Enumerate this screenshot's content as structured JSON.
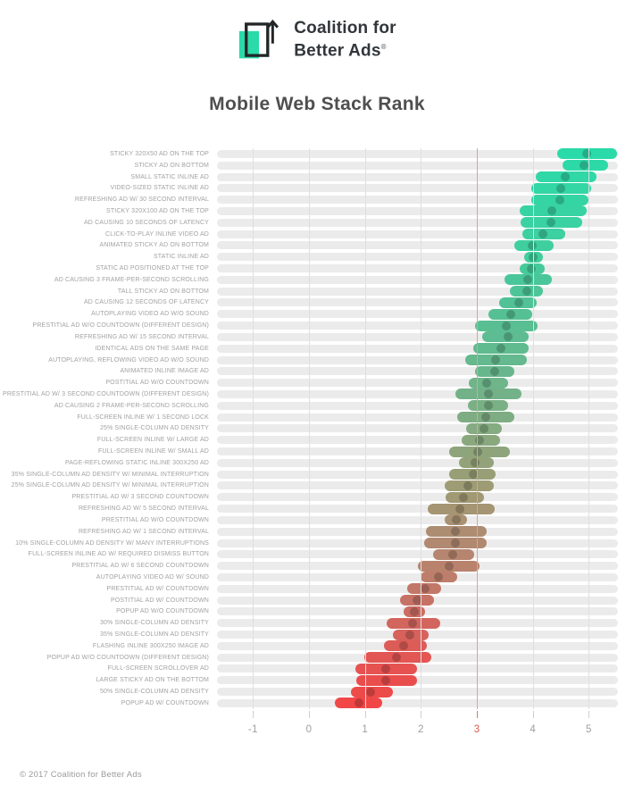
{
  "header": {
    "logo_text_line1": "Coalition for",
    "logo_text_line2": "Better Ads",
    "registered_mark": "®",
    "logo_accent_color": "#2bdaa9",
    "logo_ink_color": "#222629"
  },
  "footer": {
    "copyright": "© 2017 Coalition for Better Ads"
  },
  "chart_data": {
    "type": "bar",
    "subtype": "horizontal-range-with-median",
    "title": "Mobile Web Stack Rank",
    "xlabel": "",
    "ylabel": "",
    "x_ticks": [
      -1,
      0,
      1,
      2,
      3,
      4,
      5
    ],
    "x_range": [
      -1.5,
      5.52
    ],
    "threshold": {
      "value": 3
    },
    "colors": {
      "track": "#ebebeb",
      "gridline": "#dfdfdf",
      "threshold_line": "#e89b94",
      "tick": "#cfcfcf",
      "threshold_tick": "#e0736b",
      "tick_label": "#9e9e9e",
      "threshold_tick_label": "#db5850",
      "label_text": "#a2a2a2"
    },
    "rows": [
      {
        "label": "STICKY 320X50 AD ON THE TOP",
        "lo": 4.45,
        "hi": 5.5,
        "mid": 4.97,
        "color": "#2bdaa9"
      },
      {
        "label": "STICKY AD ON BOTTOM",
        "lo": 4.55,
        "hi": 5.35,
        "mid": 4.93,
        "color": "#2ed9a8"
      },
      {
        "label": "SMALL STATIC INLINE AD",
        "lo": 4.08,
        "hi": 5.15,
        "mid": 4.6,
        "color": "#30d7a7"
      },
      {
        "label": "VIDEO-SIZED STATIC INLINE AD",
        "lo": 4.0,
        "hi": 5.05,
        "mid": 4.52,
        "color": "#33d6a5"
      },
      {
        "label": "REFRESHING AD W/ 30 SECOND INTERVAL",
        "lo": 4.0,
        "hi": 5.0,
        "mid": 4.5,
        "color": "#35d4a4"
      },
      {
        "label": "STICKY 320X100 AD ON THE TOP",
        "lo": 3.8,
        "hi": 4.97,
        "mid": 4.37,
        "color": "#38d3a3"
      },
      {
        "label": "AD CAUSING 10 SECONDS OF LATENCY",
        "lo": 3.81,
        "hi": 4.9,
        "mid": 4.34,
        "color": "#3ad2a2"
      },
      {
        "label": "CLICK-TO-PLAY INLINE VIDEO AD",
        "lo": 3.84,
        "hi": 4.6,
        "mid": 4.21,
        "color": "#3dd0a0"
      },
      {
        "label": "ANIMATED STICKY AD ON BOTTOM",
        "lo": 3.7,
        "hi": 4.4,
        "mid": 4.02,
        "color": "#3fcf9f"
      },
      {
        "label": "STATIC INLINE AD",
        "lo": 3.88,
        "hi": 4.21,
        "mid": 4.04,
        "color": "#43cd9d"
      },
      {
        "label": "STATIC AD POSITIONED AT THE TOP",
        "lo": 3.8,
        "hi": 4.24,
        "mid": 4.01,
        "color": "#46ca9b"
      },
      {
        "label": "AD CAUSING 3 FRAME-PER-SECOND SCROLLING",
        "lo": 3.53,
        "hi": 4.36,
        "mid": 3.94,
        "color": "#4ac79a"
      },
      {
        "label": "TALL STICKY AD ON BOTTOM",
        "lo": 3.63,
        "hi": 4.2,
        "mid": 3.92,
        "color": "#4ec598"
      },
      {
        "label": "AD CAUSING 12 SECONDS OF LATENCY",
        "lo": 3.44,
        "hi": 4.1,
        "mid": 3.78,
        "color": "#51c296"
      },
      {
        "label": "AUTOPLAYING VIDEO AD W/O SOUND",
        "lo": 3.26,
        "hi": 4.02,
        "mid": 3.64,
        "color": "#55c094"
      },
      {
        "label": "PRESTITIAL AD W/O COUNTDOWN (DIFFERENT DESIGN)",
        "lo": 3.02,
        "hi": 4.12,
        "mid": 3.56,
        "color": "#59be92"
      },
      {
        "label": "REFRESHING AD W/ 15 SECOND INTERVAL",
        "lo": 3.14,
        "hi": 3.96,
        "mid": 3.59,
        "color": "#5dbc91"
      },
      {
        "label": "IDENTICAL ADS ON THE SAME PAGE",
        "lo": 2.98,
        "hi": 3.96,
        "mid": 3.47,
        "color": "#60bb8f"
      },
      {
        "label": "AUTOPLAYING, REFLOWING VIDEO AD W/O SOUND",
        "lo": 2.85,
        "hi": 3.92,
        "mid": 3.38,
        "color": "#64b98e"
      },
      {
        "label": "ANIMATED INLINE IMAGE AD",
        "lo": 3.02,
        "hi": 3.7,
        "mid": 3.36,
        "color": "#68b78c"
      },
      {
        "label": "POSTITIAL AD W/O COUNTDOWN",
        "lo": 2.91,
        "hi": 3.59,
        "mid": 3.22,
        "color": "#6eb58a"
      },
      {
        "label": "PRESTITIAL AD W/ 3 SECOND COUNTDOWN (DIFFERENT DESIGN)",
        "lo": 2.67,
        "hi": 3.83,
        "mid": 3.25,
        "color": "#73b288"
      },
      {
        "label": "AD CAUSING 2 FRAME-PER-SECOND SCROLLING",
        "lo": 2.9,
        "hi": 3.6,
        "mid": 3.26,
        "color": "#79b085"
      },
      {
        "label": "FULL-SCREEN INLINE W/ 1 SECOND LOCK",
        "lo": 2.7,
        "hi": 3.7,
        "mid": 3.2,
        "color": "#7ead83"
      },
      {
        "label": "25% SINGLE-COLUMN AD DENSITY",
        "lo": 2.86,
        "hi": 3.49,
        "mid": 3.17,
        "color": "#84ab81"
      },
      {
        "label": "FULL-SCREEN INLINE W/ LARGE AD",
        "lo": 2.78,
        "hi": 3.46,
        "mid": 3.09,
        "color": "#89a87e"
      },
      {
        "label": "FULL-SCREEN INLINE W/ SMALL AD",
        "lo": 2.56,
        "hi": 3.63,
        "mid": 3.07,
        "color": "#8ea57c"
      },
      {
        "label": "PAGE-REFLOWING STATIC INLINE 300X250 AD",
        "lo": 2.73,
        "hi": 3.34,
        "mid": 3.02,
        "color": "#93a279"
      },
      {
        "label": "35% SINGLE-COLUMN AD DENSITY W/ MINIMAL INTERRUPTION",
        "lo": 2.57,
        "hi": 3.38,
        "mid": 2.98,
        "color": "#989f77"
      },
      {
        "label": "25% SINGLE-COLUMN AD DENSITY W/ MINIMAL INTERRUPTION",
        "lo": 2.48,
        "hi": 3.34,
        "mid": 2.9,
        "color": "#9d9c74"
      },
      {
        "label": "PRESTITIAL AD W/ 3 SECOND COUNTDOWN",
        "lo": 2.5,
        "hi": 3.18,
        "mid": 2.82,
        "color": "#a19874"
      },
      {
        "label": "REFRESHING AD W/ 5 SECOND INTERVAL",
        "lo": 2.19,
        "hi": 3.36,
        "mid": 2.75,
        "color": "#a59573"
      },
      {
        "label": "PRESTITIAL AD W/O COUNTDOWN",
        "lo": 2.49,
        "hi": 2.88,
        "mid": 2.69,
        "color": "#a99173"
      },
      {
        "label": "REFRESHING AD W/ 1 SECOND INTERVAL",
        "lo": 2.16,
        "hi": 3.22,
        "mid": 2.67,
        "color": "#ad8d72"
      },
      {
        "label": "10% SINGLE-COLUMN AD DENSITY W/ MANY INTERRUPTIONS",
        "lo": 2.12,
        "hi": 3.22,
        "mid": 2.67,
        "color": "#b18970"
      },
      {
        "label": "FULL-SCREEN INLINE AD W/ REQUIRED DISMISS BUTTON",
        "lo": 2.29,
        "hi": 3.01,
        "mid": 2.63,
        "color": "#b5856f"
      },
      {
        "label": "PRESTITIAL AD W/ 6 SECOND COUNTDOWN",
        "lo": 2.01,
        "hi": 3.09,
        "mid": 2.56,
        "color": "#b9826d"
      },
      {
        "label": "AUTOPLAYING VIDEO AD W/ SOUND",
        "lo": 2.06,
        "hi": 2.71,
        "mid": 2.38,
        "color": "#bd7e6b"
      },
      {
        "label": "PRESTITIAL AD W/ COUNTDOWN",
        "lo": 1.83,
        "hi": 2.43,
        "mid": 2.14,
        "color": "#c27868"
      },
      {
        "label": "POSTITIAL AD W/ COUNTDOWN",
        "lo": 1.7,
        "hi": 2.3,
        "mid": 2.0,
        "color": "#c77266"
      },
      {
        "label": "POPUP AD W/O COUNTDOWN",
        "lo": 1.77,
        "hi": 2.14,
        "mid": 1.95,
        "color": "#cc6c63"
      },
      {
        "label": "30% SINGLE-COLUMN AD DENSITY",
        "lo": 1.47,
        "hi": 2.41,
        "mid": 1.92,
        "color": "#d2665f"
      },
      {
        "label": "35% SINGLE-COLUMN AD DENSITY",
        "lo": 1.58,
        "hi": 2.21,
        "mid": 1.88,
        "color": "#d7615b"
      },
      {
        "label": "FLASHING INLINE 300X250 IMAGE AD",
        "lo": 1.42,
        "hi": 2.17,
        "mid": 1.77,
        "color": "#dc5c57"
      },
      {
        "label": "POPUP AD W/O COUNTDOWN (DIFFERENT DESIGN)",
        "lo": 1.08,
        "hi": 2.25,
        "mid": 1.64,
        "color": "#e25653"
      },
      {
        "label": "FULL-SCREEN SCROLLOVER AD",
        "lo": 0.92,
        "hi": 2.01,
        "mid": 1.45,
        "color": "#e65250"
      },
      {
        "label": "LARGE STICKY AD ON THE BOTTOM",
        "lo": 0.94,
        "hi": 2.01,
        "mid": 1.45,
        "color": "#e94e4d"
      },
      {
        "label": "50% SINGLE-COLUMN AD DENSITY",
        "lo": 0.84,
        "hi": 1.58,
        "mid": 1.19,
        "color": "#ed4b4a"
      },
      {
        "label": "POPUP AD W/ COUNTDOWN",
        "lo": 0.57,
        "hi": 1.4,
        "mid": 0.99,
        "color": "#f14747"
      }
    ]
  }
}
